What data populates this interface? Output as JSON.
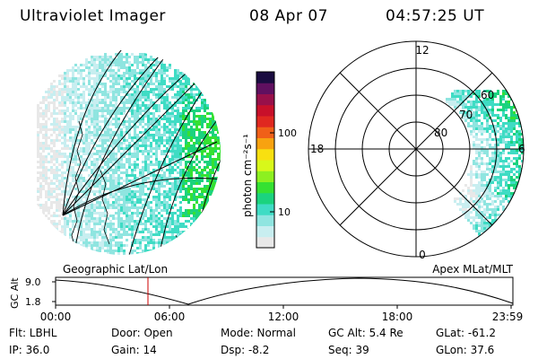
{
  "header": {
    "instrument": "Ultraviolet Imager",
    "date": "08 Apr 07",
    "time": "04:57:25 UT"
  },
  "geo_panel": {
    "label": "Geographic Lat/Lon"
  },
  "polar_panel": {
    "label": "Apex MLat/MLT",
    "lat_labels": [
      "80",
      "70",
      "60"
    ],
    "mlt_labels": [
      "12",
      "18",
      "6",
      "0"
    ]
  },
  "colorbar": {
    "unit_label": "photon cm⁻²s⁻¹",
    "tick_labels": [
      "100",
      "10"
    ],
    "scale": "log",
    "colors": [
      "#e8e8e8",
      "#c8eef0",
      "#8fe5e0",
      "#3fdcc4",
      "#1bd37e",
      "#35e132",
      "#8df020",
      "#d8f81a",
      "#f8e010",
      "#f8a210",
      "#f06018",
      "#e02820",
      "#c8102a",
      "#98104a",
      "#601060",
      "#1a0c40"
    ]
  },
  "timeline": {
    "axis_label": "GC Alt",
    "y_ticks": [
      "9.0",
      "1.8"
    ],
    "x_ticks": [
      "00:00",
      "06:00",
      "12:00",
      "18:00",
      "23:59"
    ],
    "marker_color": "#cc0000"
  },
  "info": {
    "flt": "Flt: LBHL",
    "ip": "IP: 36.0",
    "door": "Door: Open",
    "gain": "Gain: 14",
    "mode": "Mode: Normal",
    "dsp": "Dsp:   -8.2",
    "gcalt": "GC Alt: 5.4 Re",
    "seq": "Seq: 39",
    "glat": "GLat:  -61.2",
    "glon": "GLon:  37.6"
  }
}
